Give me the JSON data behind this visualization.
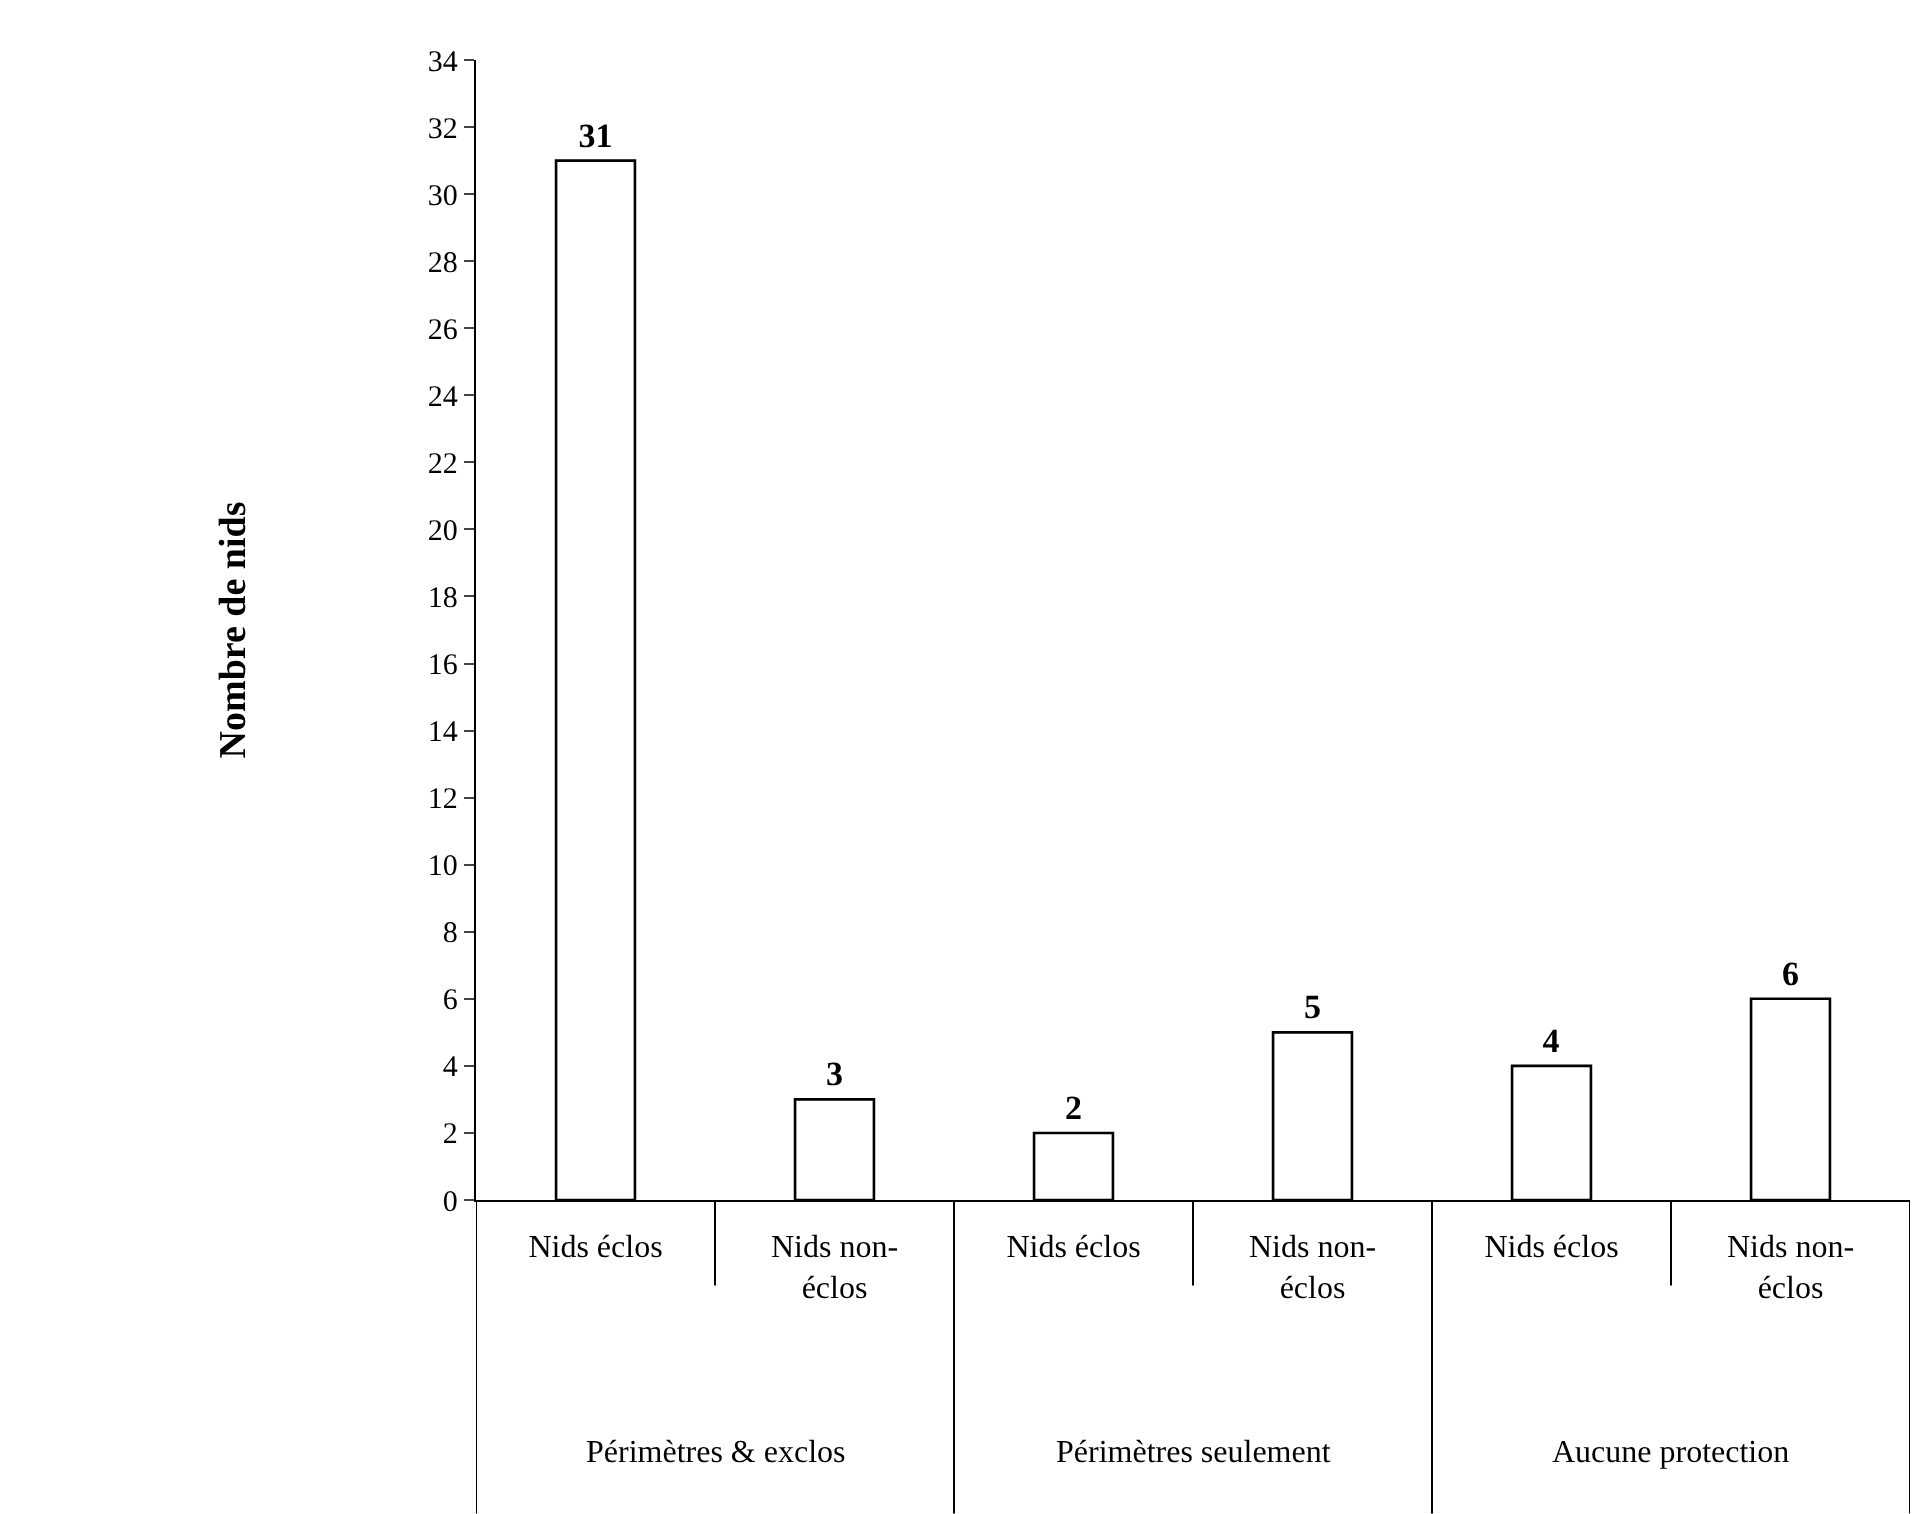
{
  "chart_data": {
    "type": "bar",
    "ylabel": "Nombre de nids",
    "categories": [
      "Nids éclos",
      "Nids non-éclos",
      "Nids éclos",
      "Nids non-éclos",
      "Nids éclos",
      "Nids non-éclos"
    ],
    "values": [
      31,
      3,
      2,
      5,
      4,
      6
    ],
    "color": "#ffffff",
    "ylim": [
      0,
      34
    ],
    "yticks": [
      0,
      2,
      4,
      6,
      8,
      10,
      12,
      14,
      16,
      18,
      20,
      22,
      24,
      26,
      28,
      30,
      32,
      34
    ],
    "data_labels": true,
    "legend": false,
    "annotations": [
      "Périmètres & exclos",
      "Périmètres seulement",
      "Aucune protection"
    ]
  }
}
